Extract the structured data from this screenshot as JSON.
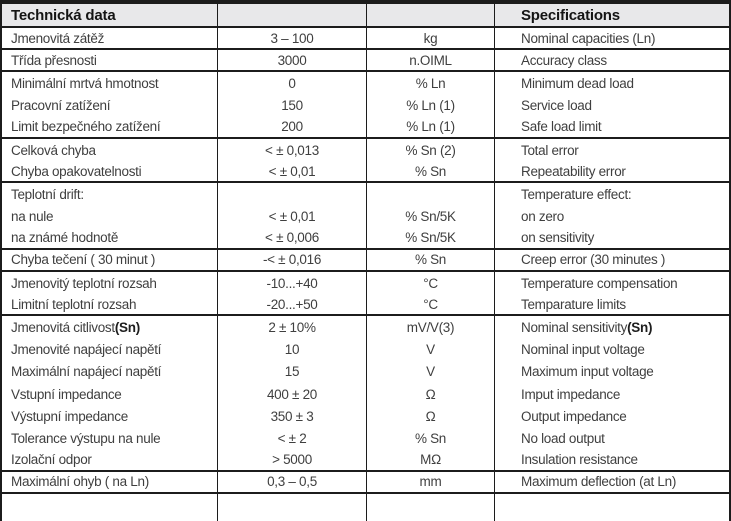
{
  "colors": {
    "border": "#1c1c1c",
    "header_bg": "#e8e8ea",
    "text": "#3f3f3f"
  },
  "table": {
    "header": {
      "left": "Technická data",
      "right": "Specifications"
    },
    "columns": [
      "czech-label",
      "value",
      "unit",
      "english-label"
    ],
    "rows": [
      {
        "cs": "Jmenovitá zátěž",
        "value": "3 – 100",
        "unit": "kg",
        "en": "Nominal capacities (Ln)",
        "end": true
      },
      {
        "cs": "Třída přesnosti",
        "value": "3000",
        "unit": "n.OIML",
        "en": "Accuracy class",
        "end": true
      },
      {
        "cs": "Minimální mrtvá hmotnost",
        "value": "0",
        "unit": "% Ln",
        "en": "Minimum dead load",
        "end": false
      },
      {
        "cs": "Pracovní zatížení",
        "value": "150",
        "unit": "% Ln (1)",
        "en": "Service load",
        "end": false
      },
      {
        "cs": "Limit bezpečného zatížení",
        "value": "200",
        "unit": "% Ln (1)",
        "en": "Safe load limit",
        "end": true
      },
      {
        "cs": "Celková chyba",
        "value": "< ± 0,013",
        "unit": "% Sn (2)",
        "en": "Total error",
        "end": false
      },
      {
        "cs": "Chyba opakovatelnosti",
        "value": "< ± 0,01",
        "unit": "% Sn",
        "en": "Repeatability error",
        "end": true
      },
      {
        "cs": "Teplotní drift:",
        "value": "",
        "unit": "",
        "en": "Temperature effect:",
        "end": false
      },
      {
        "cs": "na nule",
        "value": "< ± 0,01",
        "unit": "% Sn/5K",
        "en": "on zero",
        "end": false
      },
      {
        "cs": "na známé hodnotě",
        "value": "< ± 0,006",
        "unit": "% Sn/5K",
        "en": "on sensitivity",
        "end": true
      },
      {
        "cs": "Chyba tečení ( 30 minut )",
        "value": "-< ± 0,016",
        "unit": "% Sn",
        "en": "Creep error (30 minutes )",
        "end": true
      },
      {
        "cs": "Jmenovitý teplotní rozsah",
        "value": "-10...+40",
        "unit": "°C",
        "en": "Temperature compensation",
        "end": false
      },
      {
        "cs": "Limitní teplotní rozsah",
        "value": "-20...+50",
        "unit": "°C",
        "en": "Temparature limits",
        "end": true
      },
      {
        "cs": "Jmenovitá citlivost ",
        "cs_bold": "(Sn)",
        "value": "2 ± 10%",
        "unit": "mV/V(3)",
        "en": "Nominal sensitivity ",
        "en_bold": "(Sn)",
        "end": false
      },
      {
        "cs": "Jmenovité napájecí napětí",
        "value": "10",
        "unit": "V",
        "en": "Nominal input voltage",
        "end": false
      },
      {
        "cs": "Maximální napájecí napětí",
        "value": "15",
        "unit": "V",
        "en": "Maximum input voltage",
        "end": false
      },
      {
        "cs": "Vstupní impedance",
        "value": "400 ± 20",
        "unit": "Ω",
        "en": "Imput impedance",
        "end": false
      },
      {
        "cs": "Výstupní impedance",
        "value": "350 ± 3",
        "unit": "Ω",
        "en": "Output impedance",
        "end": false
      },
      {
        "cs": "Tolerance výstupu na nule",
        "value": "< ± 2",
        "unit": "% Sn",
        "en": "No load output",
        "end": false
      },
      {
        "cs": "Izolační odpor",
        "value": "> 5000",
        "unit": "MΩ",
        "en": "Insulation resistance",
        "end": true
      },
      {
        "cs": "Maximální ohyb ( na Ln)",
        "value": "0,3 – 0,5",
        "unit": "mm",
        "en": "Maximum deflection (at Ln)",
        "end": true
      }
    ]
  }
}
